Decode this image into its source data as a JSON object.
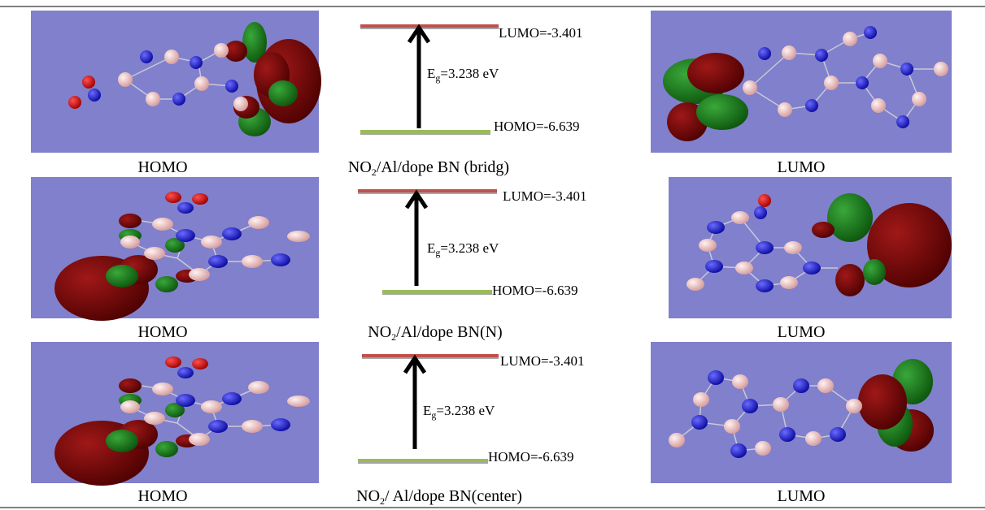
{
  "rows": [
    {
      "homo_caption": "HOMO",
      "lumo_caption": "LUMO",
      "center_caption": [
        "NO",
        "2",
        "/Al/dope BN (bridg)"
      ],
      "lumo_level": "LUMO=-3.401",
      "homo_level": "HOMO=-6.639",
      "gap": [
        "E",
        "g",
        "=3.238 eV"
      ]
    },
    {
      "homo_caption": "HOMO",
      "lumo_caption": "LUMO",
      "center_caption": [
        "NO",
        "2",
        "/Al/dope BN(N)"
      ],
      "lumo_level": "LUMO=-3.401",
      "homo_level": "HOMO=-6.639",
      "gap": [
        "E",
        "g",
        "=3.238 eV"
      ]
    },
    {
      "homo_caption": "HOMO",
      "lumo_caption": "LUMO",
      "center_caption": [
        "NO",
        "2",
        "/ Al/dope BN(center)"
      ],
      "lumo_level": "LUMO=-3.401",
      "homo_level": "HOMO=-6.639",
      "gap": [
        "E",
        "g",
        "=3.238 eV"
      ]
    }
  ]
}
